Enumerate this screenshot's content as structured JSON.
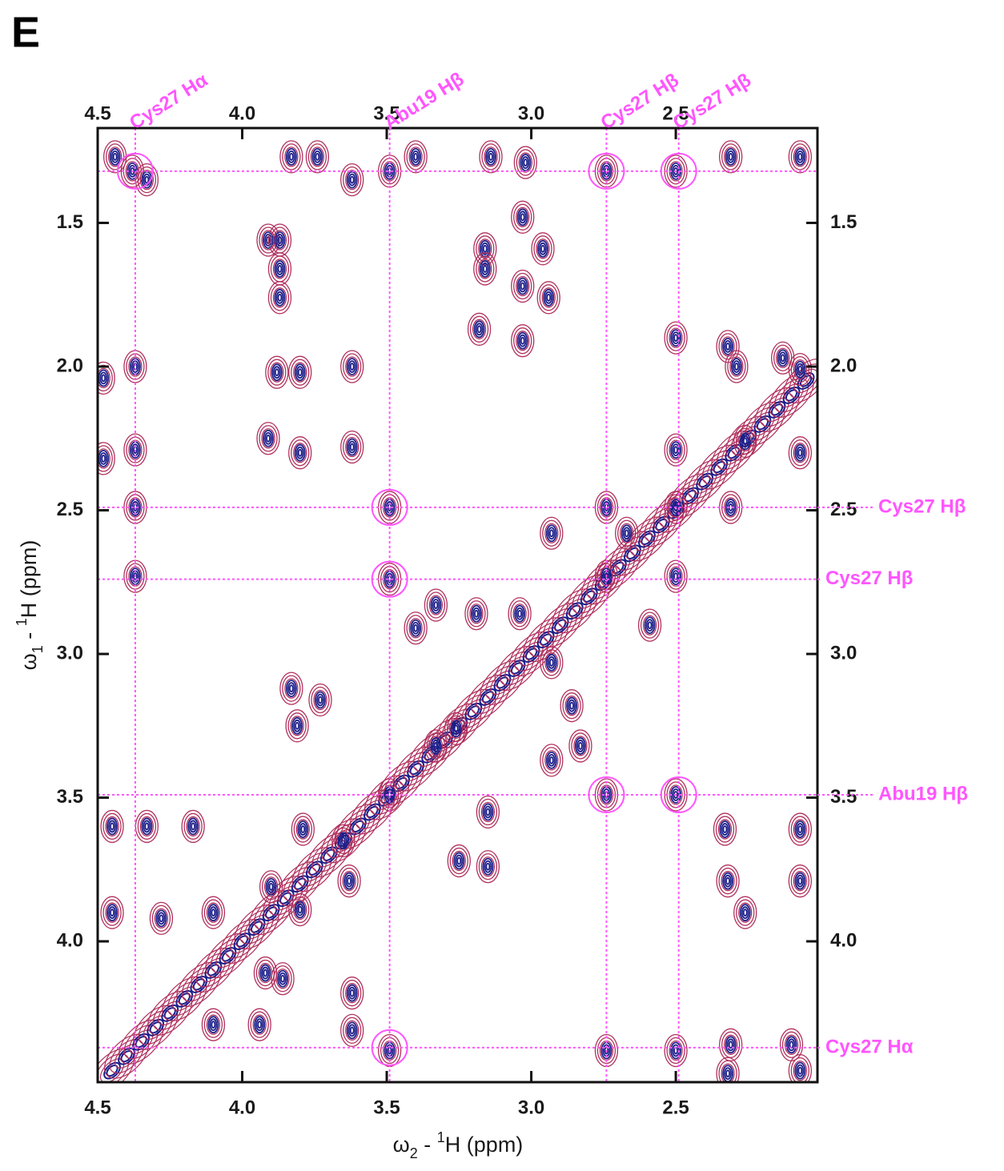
{
  "chart_data": {
    "type": "nmr2d",
    "panel_label": "E",
    "x_label": [
      "ω",
      "2",
      " - ",
      "1",
      "H  (ppm)"
    ],
    "y_label": [
      "ω",
      "1",
      " - ",
      "1",
      "H  (ppm)"
    ],
    "xlim": [
      4.5,
      2.01
    ],
    "ylim": [
      4.49,
      1.17
    ],
    "xticks": [
      {
        "value": 4.5,
        "label": "4.5"
      },
      {
        "value": 4.0,
        "label": "4.0"
      },
      {
        "value": 3.5,
        "label": "3.5"
      },
      {
        "value": 3.0,
        "label": "3.0"
      },
      {
        "value": 2.5,
        "label": "2.5"
      }
    ],
    "yticks": [
      {
        "value": 1.5,
        "label": "1.5"
      },
      {
        "value": 2.0,
        "label": "2.0"
      },
      {
        "value": 2.5,
        "label": "2.5"
      },
      {
        "value": 3.0,
        "label": "3.0"
      },
      {
        "value": 3.5,
        "label": "3.5"
      },
      {
        "value": 4.0,
        "label": "4.0"
      }
    ],
    "ring_color": "#b0315e",
    "core_color": "#1c1f8a",
    "guide_color": "#ff55ff",
    "top_labels": [
      {
        "value": 4.37,
        "label": "Cys27 Hα"
      },
      {
        "value": 3.49,
        "label": "Abu19 Hβ"
      },
      {
        "value": 2.74,
        "label": "Cys27 Hβ"
      },
      {
        "value": 2.49,
        "label": "Cys27 Hβ"
      }
    ],
    "right_labels": [
      {
        "value": 2.49,
        "label": "Cys27 Hβ"
      },
      {
        "value": 2.74,
        "label": "Cys27 Hβ"
      },
      {
        "value": 3.49,
        "label": "Abu19 Hβ"
      },
      {
        "value": 4.37,
        "label": "Cys27 Hα"
      }
    ],
    "y_guide_lines": [
      1.32,
      2.49,
      2.74,
      3.49,
      4.37
    ],
    "circles": {
      "x": [
        4.37,
        2.74,
        2.49,
        3.49,
        3.49,
        2.74,
        2.49,
        3.49
      ],
      "y": [
        1.32,
        1.32,
        1.32,
        2.49,
        2.74,
        3.49,
        3.49,
        4.37
      ]
    },
    "peaks": {
      "x": [
        4.38,
        4.44,
        4.33,
        3.83,
        3.74,
        3.62,
        3.49,
        3.4,
        3.14,
        3.02,
        2.74,
        2.5,
        2.31,
        2.07,
        3.91,
        3.87,
        3.87,
        3.87,
        3.16,
        3.16,
        3.03,
        2.96,
        3.03,
        2.94,
        3.18,
        3.03,
        4.37,
        4.48,
        3.88,
        3.8,
        3.62,
        2.5,
        2.32,
        2.29,
        2.07,
        4.48,
        4.37,
        3.91,
        3.8,
        3.62,
        2.5,
        2.26,
        2.07,
        2.13,
        4.37,
        3.49,
        2.74,
        2.5,
        2.31,
        2.93,
        2.67,
        4.37,
        3.49,
        2.74,
        2.5,
        2.59,
        3.33,
        3.19,
        3.04,
        2.93,
        2.86,
        3.4,
        3.83,
        3.73,
        3.81,
        3.33,
        3.26,
        2.83,
        2.93,
        2.74,
        2.5,
        3.49,
        4.45,
        4.33,
        4.17,
        3.79,
        3.65,
        3.15,
        3.25,
        3.15,
        2.33,
        2.07,
        2.07,
        2.32,
        2.26,
        4.45,
        4.28,
        4.1,
        3.9,
        3.8,
        3.63,
        3.92,
        3.86,
        3.62,
        3.62,
        2.74,
        2.5,
        2.31,
        2.1,
        3.49,
        2.32,
        2.07,
        3.94,
        4.1
      ],
      "y": [
        1.32,
        1.27,
        1.35,
        1.27,
        1.27,
        1.35,
        1.32,
        1.27,
        1.27,
        1.29,
        1.32,
        1.32,
        1.27,
        1.27,
        1.56,
        1.56,
        1.66,
        1.76,
        1.59,
        1.66,
        1.48,
        1.59,
        1.72,
        1.76,
        1.87,
        1.91,
        2.0,
        2.04,
        2.02,
        2.02,
        2.0,
        1.9,
        1.93,
        2.0,
        2.01,
        2.32,
        2.29,
        2.25,
        2.3,
        2.28,
        2.29,
        2.26,
        2.3,
        1.97,
        2.49,
        2.49,
        2.49,
        2.49,
        2.49,
        2.58,
        2.58,
        2.73,
        2.74,
        2.73,
        2.73,
        2.9,
        2.83,
        2.86,
        2.86,
        3.03,
        3.18,
        2.91,
        3.12,
        3.16,
        3.25,
        3.32,
        3.26,
        3.32,
        3.37,
        3.49,
        3.49,
        3.49,
        3.6,
        3.6,
        3.6,
        3.61,
        3.65,
        3.55,
        3.72,
        3.74,
        3.61,
        3.61,
        3.79,
        3.79,
        3.9,
        3.9,
        3.92,
        3.9,
        3.81,
        3.89,
        3.79,
        4.11,
        4.13,
        4.18,
        4.31,
        4.38,
        4.38,
        4.36,
        4.36,
        4.38,
        4.46,
        4.45,
        4.29,
        4.29
      ]
    },
    "diagonal": {
      "x": [
        4.45,
        4.4,
        4.35,
        4.3,
        4.25,
        4.2,
        4.15,
        4.1,
        4.05,
        4.0,
        3.95,
        3.9,
        3.85,
        3.8,
        3.75,
        3.7,
        3.65,
        3.6,
        3.55,
        3.5,
        3.45,
        3.4,
        3.35,
        3.3,
        3.25,
        3.2,
        3.15,
        3.1,
        3.05,
        3.0,
        2.95,
        2.9,
        2.85,
        2.8,
        2.75,
        2.7,
        2.65,
        2.6,
        2.55,
        2.5,
        2.45,
        2.4,
        2.35,
        2.3,
        2.25,
        2.2,
        2.15,
        2.1,
        2.05
      ],
      "y": [
        4.45,
        4.4,
        4.35,
        4.3,
        4.25,
        4.2,
        4.15,
        4.1,
        4.05,
        4.0,
        3.95,
        3.9,
        3.85,
        3.8,
        3.75,
        3.7,
        3.65,
        3.6,
        3.55,
        3.5,
        3.45,
        3.4,
        3.35,
        3.3,
        3.25,
        3.2,
        3.15,
        3.1,
        3.05,
        3.0,
        2.95,
        2.9,
        2.85,
        2.8,
        2.75,
        2.7,
        2.65,
        2.6,
        2.55,
        2.5,
        2.45,
        2.4,
        2.35,
        2.3,
        2.25,
        2.2,
        2.15,
        2.1,
        2.05
      ]
    }
  }
}
